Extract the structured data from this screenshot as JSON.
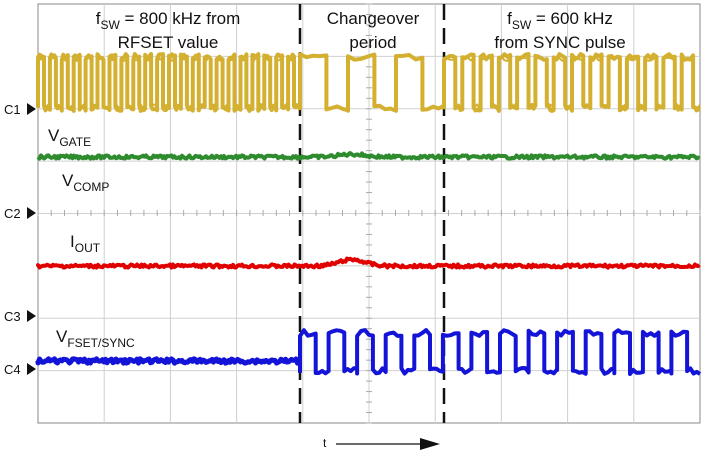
{
  "chart_data": {
    "type": "line",
    "title": "",
    "xlabel": "t",
    "ylabel": "",
    "grid": true,
    "regions": [
      {
        "label_parts": [
          "f",
          "SW",
          " = 800 kHz from",
          "RFSET value"
        ]
      },
      {
        "label_parts": [
          "Changeover",
          "period"
        ]
      },
      {
        "label_parts": [
          "f",
          "SW",
          " = 600 kHz",
          "from SYNC pulse"
        ]
      }
    ],
    "channel_markers": [
      "C1",
      "C2",
      "C3",
      "C4"
    ],
    "series": [
      {
        "id": "sw",
        "color": "#d4b030",
        "shape": "square-wave",
        "pre_cycles": 22,
        "changeover_cycles": 2,
        "post_cycles": 14
      },
      {
        "id": "vgate",
        "label_main": "V",
        "label_sub": "GATE",
        "color": "#2e8b2e",
        "shape": "flat-with-bump",
        "bump_amplitude": 0.07
      },
      {
        "id": "vcomp",
        "label_main": "V",
        "label_sub": "COMP",
        "color": "#2e8b2e",
        "shape": "label-only"
      },
      {
        "id": "iout",
        "label_main": "I",
        "label_sub": "OUT",
        "color": "#e00000",
        "shape": "flat-with-bump",
        "bump_amplitude": 0.16
      },
      {
        "id": "vsync",
        "label_main": "V",
        "label_sub": "FSET/SYNC",
        "color": "#1414d8",
        "shape": "flat-then-pulses",
        "post_cycles": 14
      }
    ]
  }
}
